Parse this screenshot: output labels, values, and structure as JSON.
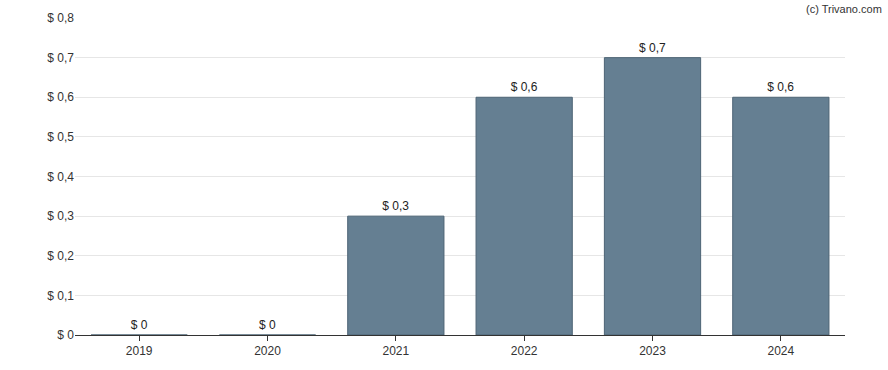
{
  "chart_data": {
    "type": "bar",
    "annotation": "(c) Trivano.com",
    "categories": [
      "2019",
      "2020",
      "2021",
      "2022",
      "2023",
      "2024"
    ],
    "values": [
      0,
      0,
      0.3,
      0.6,
      0.7,
      0.6
    ],
    "value_labels": [
      "$ 0",
      "$ 0",
      "$ 0,3",
      "$ 0,6",
      "$ 0,7",
      "$ 0,6"
    ],
    "data_labels": true,
    "color": "#657f92",
    "ylim": [
      0,
      0.8
    ],
    "yticks": [
      {
        "value": 0,
        "label": "$ 0"
      },
      {
        "value": 0.1,
        "label": "$ 0,1"
      },
      {
        "value": 0.2,
        "label": "$ 0,2"
      },
      {
        "value": 0.3,
        "label": "$ 0,3"
      },
      {
        "value": 0.4,
        "label": "$ 0,4"
      },
      {
        "value": 0.5,
        "label": "$ 0,5"
      },
      {
        "value": 0.6,
        "label": "$ 0,6"
      },
      {
        "value": 0.7,
        "label": "$ 0,7"
      },
      {
        "value": 0.8,
        "label": "$ 0,8"
      }
    ],
    "grid": true
  }
}
